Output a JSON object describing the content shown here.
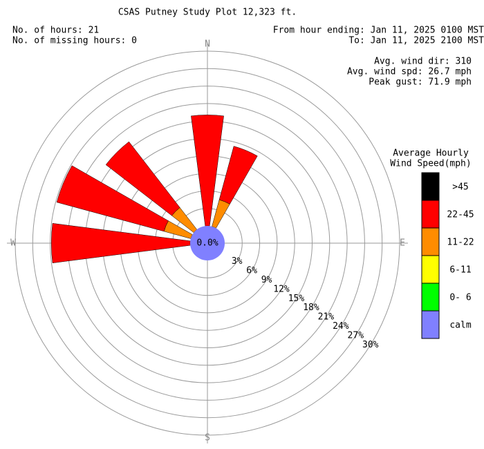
{
  "chart_data": {
    "type": "windrose",
    "title": "CSAS Putney Study Plot 12,323 ft.",
    "info_left": [
      "No. of hours: 21",
      "No. of missing hours: 0"
    ],
    "info_right": [
      "From hour ending: Jan 11, 2025 0100 MST",
      "To: Jan 11, 2025 2100 MST"
    ],
    "stats": [
      "Avg. wind dir: 310",
      "Avg. wind spd: 26.7 mph",
      "Peak gust: 71.9 mph"
    ],
    "legend_title": [
      "Average Hourly",
      "Wind Speed(mph)"
    ],
    "compass_labels": [
      "N",
      "E",
      "S",
      "W"
    ],
    "x": [
      0,
      22.5,
      270,
      292.5,
      315
    ],
    "series": [
      {
        "name": "0- 6",
        "color": "#00ff00",
        "values": [
          0,
          0,
          0,
          0,
          0
        ]
      },
      {
        "name": "6-11",
        "color": "#ffff00",
        "values": [
          0,
          0,
          0,
          0,
          0
        ]
      },
      {
        "name": "11-22",
        "color": "#ff8c00",
        "values": [
          0,
          4.76,
          0,
          4.76,
          4.76
        ]
      },
      {
        "name": "22-45",
        "color": "#ff0000",
        "values": [
          19.05,
          9.52,
          23.81,
          19.05,
          14.29
        ]
      },
      {
        "name": ">45",
        "color": "#000000",
        "values": [
          0,
          0,
          0,
          0,
          0
        ]
      }
    ],
    "calm": {
      "name": "calm",
      "color": "#8080ff",
      "value": 0,
      "value_label": "0.0%"
    },
    "rlim": [
      0,
      30
    ],
    "rticks": [
      {
        "value": 3,
        "label": "3%"
      },
      {
        "value": 6,
        "label": "6%"
      },
      {
        "value": 9,
        "label": "9%"
      },
      {
        "value": 12,
        "label": "12%"
      },
      {
        "value": 15,
        "label": "15%"
      },
      {
        "value": 18,
        "label": "18%"
      },
      {
        "value": 21,
        "label": "21%"
      },
      {
        "value": 24,
        "label": "24%"
      },
      {
        "value": 27,
        "label": "27%"
      },
      {
        "value": 30,
        "label": "30%"
      }
    ]
  }
}
